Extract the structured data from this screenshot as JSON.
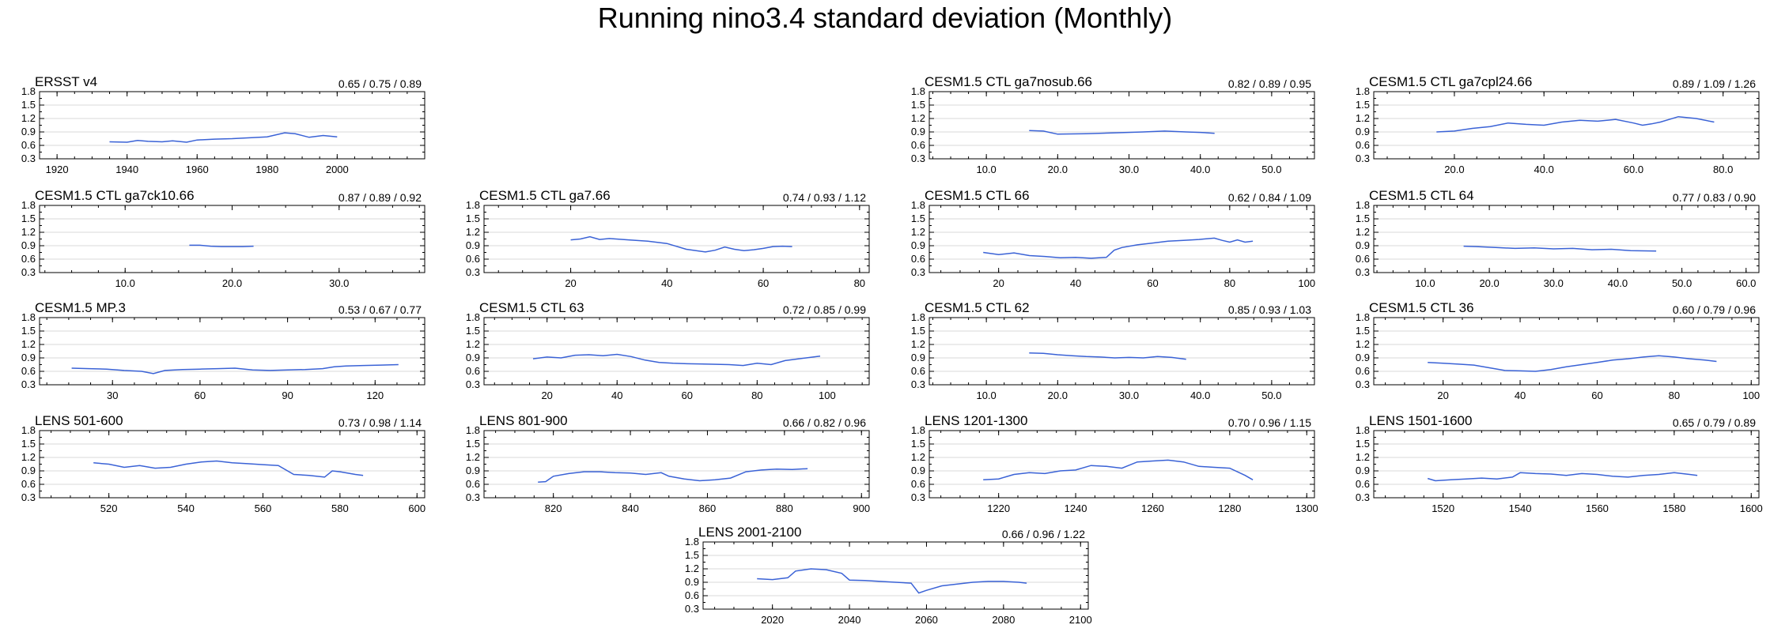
{
  "title": "Running nino3.4 standard deviation (Monthly)",
  "line_color": "#3a62d6",
  "chart_data": [
    {
      "type": "line",
      "row": 0,
      "col": 0,
      "title": "ERSST v4",
      "stats": "0.65 / 0.75 / 0.89",
      "xlim": [
        1915,
        2025
      ],
      "xticks": [
        1920,
        1940,
        1960,
        1980,
        2000
      ],
      "xtick_labels": [
        "1920",
        "1940",
        "1960",
        "1980",
        "2000"
      ],
      "ylim": [
        0.3,
        1.8
      ],
      "yticks": [
        "0.3",
        "0.6",
        "0.9",
        "1.2",
        "1.5",
        "1.8"
      ],
      "x": [
        1935,
        1940,
        1943,
        1946,
        1950,
        1953,
        1957,
        1960,
        1965,
        1970,
        1975,
        1980,
        1985,
        1988,
        1992,
        1996,
        2000
      ],
      "y": [
        0.68,
        0.67,
        0.71,
        0.69,
        0.68,
        0.7,
        0.67,
        0.72,
        0.74,
        0.75,
        0.77,
        0.79,
        0.88,
        0.86,
        0.78,
        0.82,
        0.79
      ]
    },
    {
      "type": "line",
      "row": 0,
      "col": 2,
      "title": "CESM1.5 CTL ga7nosub.66",
      "stats": "0.82 / 0.89 / 0.95",
      "xlim": [
        2,
        56
      ],
      "xticks": [
        10,
        20,
        30,
        40,
        50
      ],
      "xtick_labels": [
        "10.0",
        "20.0",
        "30.0",
        "40.0",
        "50.0"
      ],
      "ylim": [
        0.3,
        1.8
      ],
      "yticks": [
        "0.3",
        "0.6",
        "0.9",
        "1.2",
        "1.5",
        "1.8"
      ],
      "x": [
        16,
        18,
        20,
        24,
        28,
        32,
        35,
        38,
        40,
        42
      ],
      "y": [
        0.93,
        0.92,
        0.85,
        0.86,
        0.88,
        0.9,
        0.92,
        0.9,
        0.89,
        0.87
      ]
    },
    {
      "type": "line",
      "row": 0,
      "col": 3,
      "title": "CESM1.5 CTL ga7cpl24.66",
      "stats": "0.89 / 1.09 / 1.26",
      "xlim": [
        2,
        88
      ],
      "xticks": [
        20,
        40,
        60,
        80
      ],
      "xtick_labels": [
        "20.0",
        "40.0",
        "60.0",
        "80.0"
      ],
      "ylim": [
        0.3,
        1.8
      ],
      "yticks": [
        "0.3",
        "0.6",
        "0.9",
        "1.2",
        "1.5",
        "1.8"
      ],
      "x": [
        16,
        20,
        24,
        28,
        32,
        36,
        40,
        44,
        48,
        52,
        56,
        60,
        62,
        64,
        66,
        70,
        74,
        78
      ],
      "y": [
        0.9,
        0.92,
        0.98,
        1.02,
        1.1,
        1.07,
        1.05,
        1.12,
        1.16,
        1.14,
        1.18,
        1.1,
        1.05,
        1.08,
        1.12,
        1.24,
        1.2,
        1.12
      ]
    },
    {
      "type": "line",
      "row": 1,
      "col": 0,
      "title": "CESM1.5 CTL ga7ck10.66",
      "stats": "0.87 / 0.89 / 0.92",
      "xlim": [
        2,
        38
      ],
      "xticks": [
        10,
        20,
        30
      ],
      "xtick_labels": [
        "10.0",
        "20.0",
        "30.0"
      ],
      "ylim": [
        0.3,
        1.8
      ],
      "yticks": [
        "0.3",
        "0.6",
        "0.9",
        "1.2",
        "1.5",
        "1.8"
      ],
      "x": [
        16,
        17,
        18,
        19,
        20,
        21,
        22
      ],
      "y": [
        0.91,
        0.91,
        0.89,
        0.88,
        0.88,
        0.88,
        0.89
      ]
    },
    {
      "type": "line",
      "row": 1,
      "col": 1,
      "title": "CESM1.5 CTL ga7.66",
      "stats": "0.74 / 0.93 / 1.12",
      "xlim": [
        2,
        82
      ],
      "xticks": [
        20,
        40,
        60,
        80
      ],
      "xtick_labels": [
        "20",
        "40",
        "60",
        "80"
      ],
      "ylim": [
        0.3,
        1.8
      ],
      "yticks": [
        "0.3",
        "0.6",
        "0.9",
        "1.2",
        "1.5",
        "1.8"
      ],
      "x": [
        20,
        22,
        24,
        26,
        28,
        32,
        36,
        40,
        44,
        48,
        50,
        52,
        54,
        56,
        58,
        60,
        62,
        64,
        66
      ],
      "y": [
        1.03,
        1.05,
        1.1,
        1.04,
        1.06,
        1.03,
        1.0,
        0.95,
        0.82,
        0.76,
        0.8,
        0.87,
        0.82,
        0.79,
        0.81,
        0.84,
        0.88,
        0.89,
        0.88
      ]
    },
    {
      "type": "line",
      "row": 1,
      "col": 2,
      "title": "CESM1.5 CTL 66",
      "stats": "0.62 / 0.84 / 1.09",
      "xlim": [
        2,
        102
      ],
      "xticks": [
        20,
        40,
        60,
        80,
        100
      ],
      "xtick_labels": [
        "20",
        "40",
        "60",
        "80",
        "100"
      ],
      "ylim": [
        0.3,
        1.8
      ],
      "yticks": [
        "0.3",
        "0.6",
        "0.9",
        "1.2",
        "1.5",
        "1.8"
      ],
      "x": [
        16,
        20,
        24,
        28,
        32,
        36,
        40,
        44,
        48,
        50,
        52,
        56,
        60,
        64,
        68,
        72,
        76,
        78,
        80,
        82,
        84,
        86
      ],
      "y": [
        0.75,
        0.7,
        0.74,
        0.68,
        0.66,
        0.63,
        0.64,
        0.62,
        0.64,
        0.8,
        0.86,
        0.92,
        0.96,
        1.0,
        1.02,
        1.04,
        1.07,
        1.02,
        0.98,
        1.03,
        0.98,
        1.0
      ]
    },
    {
      "type": "line",
      "row": 1,
      "col": 3,
      "title": "CESM1.5 CTL 64",
      "stats": "0.77 / 0.83 / 0.90",
      "xlim": [
        2,
        62
      ],
      "xticks": [
        10,
        20,
        30,
        40,
        50,
        60
      ],
      "xtick_labels": [
        "10.0",
        "20.0",
        "30.0",
        "40.0",
        "50.0",
        "60.0"
      ],
      "ylim": [
        0.3,
        1.8
      ],
      "yticks": [
        "0.3",
        "0.6",
        "0.9",
        "1.2",
        "1.5",
        "1.8"
      ],
      "x": [
        16,
        18,
        21,
        24,
        27,
        30,
        33,
        36,
        39,
        42,
        46
      ],
      "y": [
        0.89,
        0.88,
        0.86,
        0.84,
        0.85,
        0.83,
        0.84,
        0.81,
        0.82,
        0.79,
        0.78
      ]
    },
    {
      "type": "line",
      "row": 2,
      "col": 0,
      "title": "CESM1.5 MP.3",
      "stats": "0.53 / 0.67 / 0.77",
      "xlim": [
        5,
        137
      ],
      "xticks": [
        30,
        60,
        90,
        120
      ],
      "xtick_labels": [
        "30",
        "60",
        "90",
        "120"
      ],
      "ylim": [
        0.3,
        1.8
      ],
      "yticks": [
        "0.3",
        "0.6",
        "0.9",
        "1.2",
        "1.5",
        "1.8"
      ],
      "x": [
        16,
        22,
        28,
        34,
        40,
        44,
        48,
        54,
        60,
        66,
        72,
        78,
        84,
        90,
        96,
        102,
        106,
        110,
        116,
        122,
        128
      ],
      "y": [
        0.67,
        0.66,
        0.65,
        0.62,
        0.6,
        0.55,
        0.62,
        0.64,
        0.65,
        0.66,
        0.67,
        0.63,
        0.62,
        0.63,
        0.64,
        0.66,
        0.7,
        0.72,
        0.73,
        0.74,
        0.75
      ]
    },
    {
      "type": "line",
      "row": 2,
      "col": 1,
      "title": "CESM1.5 CTL 63",
      "stats": "0.72 / 0.85 / 0.99",
      "xlim": [
        2,
        112
      ],
      "xticks": [
        20,
        40,
        60,
        80,
        100
      ],
      "xtick_labels": [
        "20",
        "40",
        "60",
        "80",
        "100"
      ],
      "ylim": [
        0.3,
        1.8
      ],
      "yticks": [
        "0.3",
        "0.6",
        "0.9",
        "1.2",
        "1.5",
        "1.8"
      ],
      "x": [
        16,
        20,
        24,
        28,
        32,
        36,
        40,
        44,
        48,
        52,
        56,
        60,
        66,
        72,
        76,
        80,
        84,
        88,
        90,
        94,
        98
      ],
      "y": [
        0.88,
        0.92,
        0.9,
        0.96,
        0.97,
        0.95,
        0.98,
        0.93,
        0.85,
        0.8,
        0.78,
        0.77,
        0.76,
        0.75,
        0.73,
        0.78,
        0.75,
        0.84,
        0.86,
        0.9,
        0.94
      ]
    },
    {
      "type": "line",
      "row": 2,
      "col": 2,
      "title": "CESM1.5 CTL 62",
      "stats": "0.85 / 0.93 / 1.03",
      "xlim": [
        2,
        56
      ],
      "xticks": [
        10,
        20,
        30,
        40,
        50
      ],
      "xtick_labels": [
        "10.0",
        "20.0",
        "30.0",
        "40.0",
        "50.0"
      ],
      "ylim": [
        0.3,
        1.8
      ],
      "yticks": [
        "0.3",
        "0.6",
        "0.9",
        "1.2",
        "1.5",
        "1.8"
      ],
      "x": [
        16,
        18,
        20,
        22,
        24,
        26,
        28,
        30,
        32,
        34,
        36,
        38
      ],
      "y": [
        1.01,
        1.0,
        0.97,
        0.95,
        0.93,
        0.92,
        0.9,
        0.91,
        0.9,
        0.93,
        0.91,
        0.87
      ]
    },
    {
      "type": "line",
      "row": 2,
      "col": 3,
      "title": "CESM1.5 CTL 36",
      "stats": "0.60 / 0.79 / 0.96",
      "xlim": [
        2,
        102
      ],
      "xticks": [
        20,
        40,
        60,
        80,
        100
      ],
      "xtick_labels": [
        "20",
        "40",
        "60",
        "80",
        "100"
      ],
      "ylim": [
        0.3,
        1.8
      ],
      "yticks": [
        "0.3",
        "0.6",
        "0.9",
        "1.2",
        "1.5",
        "1.8"
      ],
      "x": [
        16,
        20,
        24,
        28,
        32,
        36,
        40,
        44,
        48,
        52,
        56,
        60,
        64,
        68,
        72,
        76,
        80,
        84,
        88,
        91
      ],
      "y": [
        0.8,
        0.78,
        0.76,
        0.74,
        0.68,
        0.62,
        0.61,
        0.6,
        0.64,
        0.7,
        0.75,
        0.8,
        0.85,
        0.88,
        0.92,
        0.95,
        0.92,
        0.88,
        0.85,
        0.82
      ]
    },
    {
      "type": "line",
      "row": 3,
      "col": 0,
      "title": "LENS 501-600",
      "stats": "0.73 / 0.98 / 1.14",
      "xlim": [
        502,
        602
      ],
      "xticks": [
        520,
        540,
        560,
        580,
        600
      ],
      "xtick_labels": [
        "520",
        "540",
        "560",
        "580",
        "600"
      ],
      "ylim": [
        0.3,
        1.8
      ],
      "yticks": [
        "0.3",
        "0.6",
        "0.9",
        "1.2",
        "1.5",
        "1.8"
      ],
      "x": [
        516,
        520,
        524,
        528,
        532,
        536,
        540,
        544,
        548,
        552,
        556,
        560,
        564,
        568,
        572,
        576,
        578,
        580,
        584,
        586
      ],
      "y": [
        1.08,
        1.05,
        0.98,
        1.02,
        0.96,
        0.98,
        1.05,
        1.1,
        1.12,
        1.08,
        1.06,
        1.04,
        1.02,
        0.82,
        0.8,
        0.76,
        0.9,
        0.88,
        0.82,
        0.8
      ]
    },
    {
      "type": "line",
      "row": 3,
      "col": 1,
      "title": "LENS 801-900",
      "stats": "0.66 / 0.82 / 0.96",
      "xlim": [
        802,
        902
      ],
      "xticks": [
        820,
        840,
        860,
        880,
        900
      ],
      "xtick_labels": [
        "820",
        "840",
        "860",
        "880",
        "900"
      ],
      "ylim": [
        0.3,
        1.8
      ],
      "yticks": [
        "0.3",
        "0.6",
        "0.9",
        "1.2",
        "1.5",
        "1.8"
      ],
      "x": [
        816,
        818,
        820,
        824,
        828,
        832,
        836,
        840,
        844,
        848,
        850,
        854,
        858,
        862,
        866,
        870,
        874,
        878,
        882,
        886
      ],
      "y": [
        0.65,
        0.66,
        0.78,
        0.84,
        0.88,
        0.88,
        0.86,
        0.85,
        0.82,
        0.86,
        0.78,
        0.72,
        0.68,
        0.7,
        0.74,
        0.88,
        0.92,
        0.94,
        0.93,
        0.95
      ]
    },
    {
      "type": "line",
      "row": 3,
      "col": 2,
      "title": "LENS 1201-1300",
      "stats": "0.70 / 0.96 / 1.15",
      "xlim": [
        1202,
        1302
      ],
      "xticks": [
        1220,
        1240,
        1260,
        1280,
        1300
      ],
      "xtick_labels": [
        "1220",
        "1240",
        "1260",
        "1280",
        "1300"
      ],
      "ylim": [
        0.3,
        1.8
      ],
      "yticks": [
        "0.3",
        "0.6",
        "0.9",
        "1.2",
        "1.5",
        "1.8"
      ],
      "x": [
        1216,
        1220,
        1224,
        1228,
        1232,
        1236,
        1240,
        1244,
        1248,
        1252,
        1256,
        1260,
        1264,
        1268,
        1272,
        1276,
        1280,
        1284,
        1286
      ],
      "y": [
        0.7,
        0.72,
        0.82,
        0.86,
        0.84,
        0.9,
        0.92,
        1.02,
        1.0,
        0.96,
        1.1,
        1.12,
        1.14,
        1.1,
        1.0,
        0.98,
        0.96,
        0.8,
        0.7
      ]
    },
    {
      "type": "line",
      "row": 3,
      "col": 3,
      "title": "LENS 1501-1600",
      "stats": "0.65 / 0.79 / 0.89",
      "xlim": [
        1502,
        1602
      ],
      "xticks": [
        1520,
        1540,
        1560,
        1580,
        1600
      ],
      "xtick_labels": [
        "1520",
        "1540",
        "1560",
        "1580",
        "1600"
      ],
      "ylim": [
        0.3,
        1.8
      ],
      "yticks": [
        "0.3",
        "0.6",
        "0.9",
        "1.2",
        "1.5",
        "1.8"
      ],
      "x": [
        1516,
        1518,
        1522,
        1526,
        1530,
        1534,
        1538,
        1540,
        1544,
        1548,
        1552,
        1556,
        1560,
        1564,
        1568,
        1572,
        1576,
        1580,
        1584,
        1586
      ],
      "y": [
        0.73,
        0.68,
        0.7,
        0.72,
        0.74,
        0.72,
        0.76,
        0.86,
        0.84,
        0.83,
        0.8,
        0.84,
        0.82,
        0.78,
        0.76,
        0.8,
        0.82,
        0.86,
        0.82,
        0.8
      ]
    },
    {
      "type": "line",
      "row": 4,
      "col": 1.5,
      "title": "LENS 2001-2100",
      "stats": "0.66 / 0.96 / 1.22",
      "xlim": [
        2002,
        2102
      ],
      "xticks": [
        2020,
        2040,
        2060,
        2080,
        2100
      ],
      "xtick_labels": [
        "2020",
        "2040",
        "2060",
        "2080",
        "2100"
      ],
      "ylim": [
        0.3,
        1.8
      ],
      "yticks": [
        "0.3",
        "0.6",
        "0.9",
        "1.2",
        "1.5",
        "1.8"
      ],
      "x": [
        2016,
        2020,
        2024,
        2026,
        2030,
        2034,
        2038,
        2040,
        2044,
        2048,
        2052,
        2056,
        2058,
        2060,
        2064,
        2068,
        2072,
        2076,
        2080,
        2084,
        2086
      ],
      "y": [
        0.98,
        0.96,
        1.0,
        1.15,
        1.2,
        1.18,
        1.1,
        0.95,
        0.94,
        0.92,
        0.9,
        0.88,
        0.66,
        0.72,
        0.82,
        0.86,
        0.9,
        0.92,
        0.92,
        0.9,
        0.88
      ]
    }
  ]
}
